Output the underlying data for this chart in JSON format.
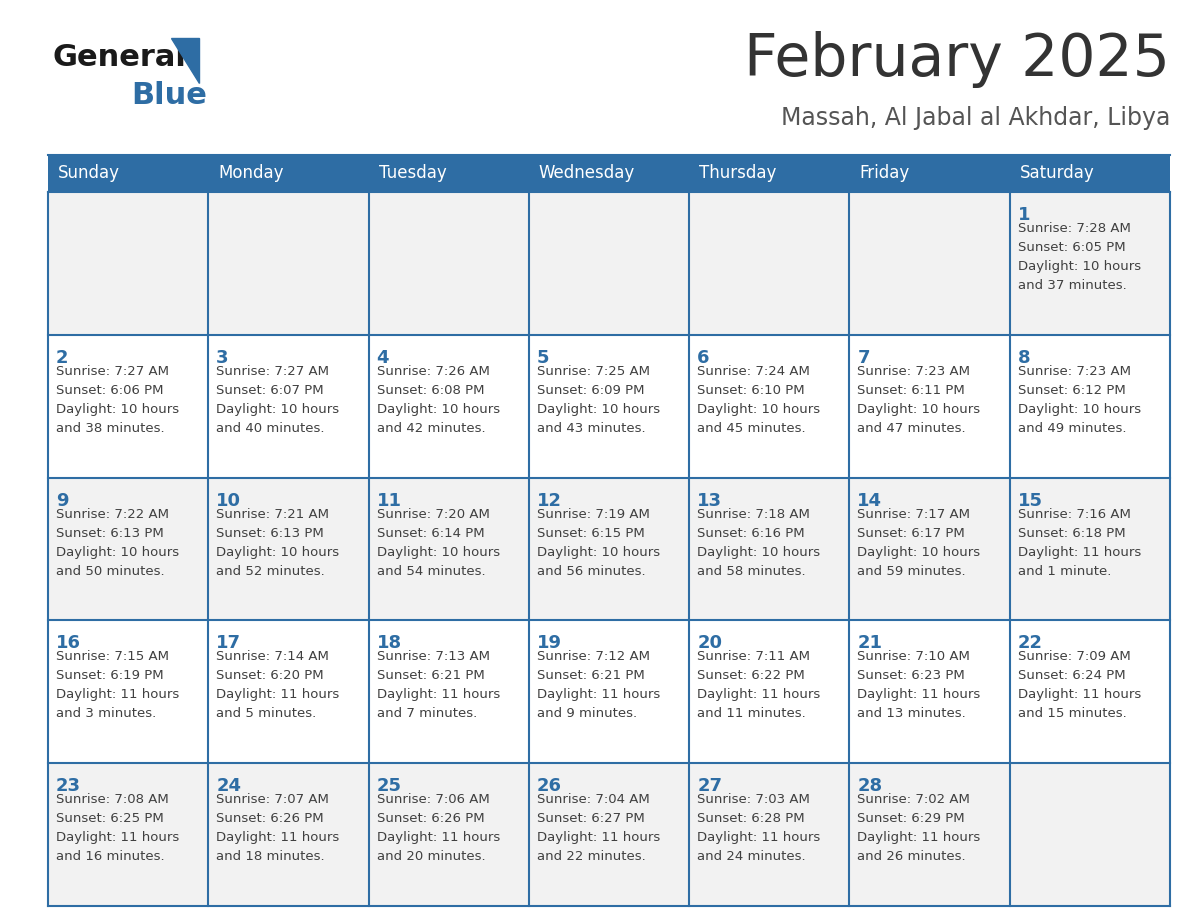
{
  "title": "February 2025",
  "subtitle": "Massah, Al Jabal al Akhdar, Libya",
  "days_of_week": [
    "Sunday",
    "Monday",
    "Tuesday",
    "Wednesday",
    "Thursday",
    "Friday",
    "Saturday"
  ],
  "header_bg": "#2E6DA4",
  "header_text": "#FFFFFF",
  "cell_bg_odd": "#F2F2F2",
  "cell_bg_even": "#FFFFFF",
  "border_color": "#2E6DA4",
  "day_number_color": "#2E6DA4",
  "text_color": "#404040",
  "title_color": "#333333",
  "subtitle_color": "#555555",
  "logo_general_color": "#1a1a1a",
  "logo_blue_color": "#2E6DA4",
  "calendar": [
    [
      null,
      null,
      null,
      null,
      null,
      null,
      {
        "day": 1,
        "sunrise": "7:28 AM",
        "sunset": "6:05 PM",
        "daylight_h": "10 hours",
        "daylight_m": "and 37 minutes."
      }
    ],
    [
      {
        "day": 2,
        "sunrise": "7:27 AM",
        "sunset": "6:06 PM",
        "daylight_h": "10 hours",
        "daylight_m": "and 38 minutes."
      },
      {
        "day": 3,
        "sunrise": "7:27 AM",
        "sunset": "6:07 PM",
        "daylight_h": "10 hours",
        "daylight_m": "and 40 minutes."
      },
      {
        "day": 4,
        "sunrise": "7:26 AM",
        "sunset": "6:08 PM",
        "daylight_h": "10 hours",
        "daylight_m": "and 42 minutes."
      },
      {
        "day": 5,
        "sunrise": "7:25 AM",
        "sunset": "6:09 PM",
        "daylight_h": "10 hours",
        "daylight_m": "and 43 minutes."
      },
      {
        "day": 6,
        "sunrise": "7:24 AM",
        "sunset": "6:10 PM",
        "daylight_h": "10 hours",
        "daylight_m": "and 45 minutes."
      },
      {
        "day": 7,
        "sunrise": "7:23 AM",
        "sunset": "6:11 PM",
        "daylight_h": "10 hours",
        "daylight_m": "and 47 minutes."
      },
      {
        "day": 8,
        "sunrise": "7:23 AM",
        "sunset": "6:12 PM",
        "daylight_h": "10 hours",
        "daylight_m": "and 49 minutes."
      }
    ],
    [
      {
        "day": 9,
        "sunrise": "7:22 AM",
        "sunset": "6:13 PM",
        "daylight_h": "10 hours",
        "daylight_m": "and 50 minutes."
      },
      {
        "day": 10,
        "sunrise": "7:21 AM",
        "sunset": "6:13 PM",
        "daylight_h": "10 hours",
        "daylight_m": "and 52 minutes."
      },
      {
        "day": 11,
        "sunrise": "7:20 AM",
        "sunset": "6:14 PM",
        "daylight_h": "10 hours",
        "daylight_m": "and 54 minutes."
      },
      {
        "day": 12,
        "sunrise": "7:19 AM",
        "sunset": "6:15 PM",
        "daylight_h": "10 hours",
        "daylight_m": "and 56 minutes."
      },
      {
        "day": 13,
        "sunrise": "7:18 AM",
        "sunset": "6:16 PM",
        "daylight_h": "10 hours",
        "daylight_m": "and 58 minutes."
      },
      {
        "day": 14,
        "sunrise": "7:17 AM",
        "sunset": "6:17 PM",
        "daylight_h": "10 hours",
        "daylight_m": "and 59 minutes."
      },
      {
        "day": 15,
        "sunrise": "7:16 AM",
        "sunset": "6:18 PM",
        "daylight_h": "11 hours",
        "daylight_m": "and 1 minute."
      }
    ],
    [
      {
        "day": 16,
        "sunrise": "7:15 AM",
        "sunset": "6:19 PM",
        "daylight_h": "11 hours",
        "daylight_m": "and 3 minutes."
      },
      {
        "day": 17,
        "sunrise": "7:14 AM",
        "sunset": "6:20 PM",
        "daylight_h": "11 hours",
        "daylight_m": "and 5 minutes."
      },
      {
        "day": 18,
        "sunrise": "7:13 AM",
        "sunset": "6:21 PM",
        "daylight_h": "11 hours",
        "daylight_m": "and 7 minutes."
      },
      {
        "day": 19,
        "sunrise": "7:12 AM",
        "sunset": "6:21 PM",
        "daylight_h": "11 hours",
        "daylight_m": "and 9 minutes."
      },
      {
        "day": 20,
        "sunrise": "7:11 AM",
        "sunset": "6:22 PM",
        "daylight_h": "11 hours",
        "daylight_m": "and 11 minutes."
      },
      {
        "day": 21,
        "sunrise": "7:10 AM",
        "sunset": "6:23 PM",
        "daylight_h": "11 hours",
        "daylight_m": "and 13 minutes."
      },
      {
        "day": 22,
        "sunrise": "7:09 AM",
        "sunset": "6:24 PM",
        "daylight_h": "11 hours",
        "daylight_m": "and 15 minutes."
      }
    ],
    [
      {
        "day": 23,
        "sunrise": "7:08 AM",
        "sunset": "6:25 PM",
        "daylight_h": "11 hours",
        "daylight_m": "and 16 minutes."
      },
      {
        "day": 24,
        "sunrise": "7:07 AM",
        "sunset": "6:26 PM",
        "daylight_h": "11 hours",
        "daylight_m": "and 18 minutes."
      },
      {
        "day": 25,
        "sunrise": "7:06 AM",
        "sunset": "6:26 PM",
        "daylight_h": "11 hours",
        "daylight_m": "and 20 minutes."
      },
      {
        "day": 26,
        "sunrise": "7:04 AM",
        "sunset": "6:27 PM",
        "daylight_h": "11 hours",
        "daylight_m": "and 22 minutes."
      },
      {
        "day": 27,
        "sunrise": "7:03 AM",
        "sunset": "6:28 PM",
        "daylight_h": "11 hours",
        "daylight_m": "and 24 minutes."
      },
      {
        "day": 28,
        "sunrise": "7:02 AM",
        "sunset": "6:29 PM",
        "daylight_h": "11 hours",
        "daylight_m": "and 26 minutes."
      },
      null
    ]
  ]
}
